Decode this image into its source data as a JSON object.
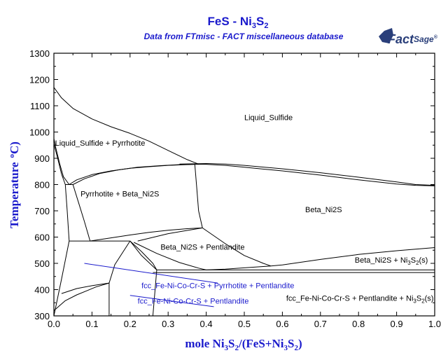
{
  "chart_data": {
    "type": "line",
    "title_parts": {
      "a": "FeS - Ni",
      "b": "3",
      "c": "S",
      "d": "2"
    },
    "subtitle": "Data from FTmisc - FACT miscellaneous database",
    "brand": {
      "name": "FactSage",
      "main": "Fact",
      "tail": "Sage",
      "mark": "®"
    },
    "xlabel_parts": {
      "a": "mole Ni",
      "b": "3",
      "c": "S",
      "d": "2",
      "e": "/(FeS+Ni",
      "f": "3",
      "g": "S",
      "h": "2",
      "i": ")"
    },
    "ylabel_parts": {
      "a": "Temperature",
      "b": "o",
      "c": "C)"
    },
    "xlim": [
      0,
      1
    ],
    "ylim": [
      300,
      1300
    ],
    "x_ticks": [
      "0.0",
      "0.1",
      "0.2",
      "0.3",
      "0.4",
      "0.5",
      "0.6",
      "0.7",
      "0.8",
      "0.9",
      "1.0"
    ],
    "y_ticks": [
      "300",
      "400",
      "500",
      "600",
      "700",
      "800",
      "900",
      "1000",
      "1100",
      "1200",
      "1300"
    ],
    "colors": {
      "title": "#1a1acc",
      "lines": "#000000",
      "tie_lines": "#1a1acc"
    },
    "grid": false,
    "boundaries": [
      {
        "x": [
          0.0,
          0.02,
          0.05,
          0.1,
          0.15,
          0.2,
          0.25,
          0.3,
          0.35,
          0.38
        ],
        "y": [
          1170,
          1130,
          1090,
          1050,
          1020,
          995,
          965,
          930,
          895,
          878
        ]
      },
      {
        "x": [
          0.0,
          0.005,
          0.015,
          0.025,
          0.04
        ],
        "y": [
          975,
          940,
          880,
          830,
          800
        ]
      },
      {
        "x": [
          0.0,
          0.01,
          0.02,
          0.03
        ],
        "y": [
          955,
          900,
          840,
          800
        ]
      },
      {
        "x": [
          0.04,
          0.06,
          0.1,
          0.15,
          0.2,
          0.25,
          0.3,
          0.35,
          0.37
        ],
        "y": [
          800,
          818,
          838,
          852,
          862,
          868,
          873,
          876,
          877
        ]
      },
      {
        "x": [
          0.05,
          0.08,
          0.12,
          0.17,
          0.22,
          0.28,
          0.33,
          0.37,
          0.4,
          0.45,
          0.5,
          0.6,
          0.7,
          0.8,
          0.9,
          0.95,
          1.0
        ],
        "y": [
          800,
          822,
          842,
          856,
          866,
          872,
          876,
          877,
          877,
          873,
          866,
          852,
          836,
          818,
          802,
          797,
          795
        ]
      },
      {
        "x": [
          0.33,
          0.4,
          0.45,
          0.5,
          0.6,
          0.7,
          0.8,
          0.9,
          0.95,
          1.0
        ],
        "y": [
          878,
          880,
          878,
          873,
          860,
          845,
          828,
          810,
          800,
          797
        ]
      },
      {
        "x": [
          0.03,
          0.05
        ],
        "y": [
          800,
          800
        ]
      },
      {
        "x": [
          0.03,
          0.035,
          0.04
        ],
        "y": [
          800,
          700,
          585
        ]
      },
      {
        "x": [
          0.05,
          0.065,
          0.08,
          0.095
        ],
        "y": [
          800,
          730,
          660,
          585
        ]
      },
      {
        "x": [
          0.37,
          0.375,
          0.38,
          0.39
        ],
        "y": [
          877,
          790,
          700,
          635
        ]
      },
      {
        "x": [
          0.095,
          0.15,
          0.2,
          0.25,
          0.3,
          0.35,
          0.39
        ],
        "y": [
          585,
          597,
          608,
          618,
          626,
          632,
          635
        ]
      },
      {
        "x": [
          0.04,
          0.2
        ],
        "y": [
          585,
          585
        ]
      },
      {
        "x": [
          0.22,
          0.3,
          0.39
        ],
        "y": [
          585,
          613,
          635
        ]
      },
      {
        "x": [
          0.39,
          0.45,
          0.5,
          0.55,
          0.57
        ],
        "y": [
          635,
          575,
          530,
          500,
          490
        ]
      },
      {
        "x": [
          0.21,
          0.27,
          0.33,
          0.38,
          0.4
        ],
        "y": [
          580,
          538,
          503,
          482,
          475
        ]
      },
      {
        "x": [
          0.4,
          0.45,
          0.5,
          0.55,
          0.57,
          0.6,
          0.7,
          0.8,
          0.9,
          1.0
        ],
        "y": [
          475,
          478,
          483,
          488,
          490,
          494,
          515,
          534,
          548,
          560
        ]
      },
      {
        "x": [
          0.2,
          0.23,
          0.26,
          0.27
        ],
        "y": [
          585,
          545,
          500,
          475
        ]
      },
      {
        "x": [
          0.27,
          1.0
        ],
        "y": [
          475,
          475
        ]
      },
      {
        "x": [
          0.26,
          1.0
        ],
        "y": [
          465,
          465
        ]
      },
      {
        "x": [
          0.04,
          0.02,
          0.0
        ],
        "y": [
          585,
          440,
          300
        ]
      },
      {
        "x": [
          0.0,
          0.03,
          0.06,
          0.09,
          0.11,
          0.145
        ],
        "y": [
          320,
          358,
          380,
          398,
          410,
          425
        ]
      },
      {
        "x": [
          0.02,
          0.06,
          0.1,
          0.145
        ],
        "y": [
          385,
          404,
          415,
          425
        ]
      },
      {
        "x": [
          0.145,
          0.16,
          0.2
        ],
        "y": [
          425,
          495,
          585
        ]
      },
      {
        "x": [
          0.2,
          0.23,
          0.27
        ],
        "y": [
          585,
          530,
          475
        ]
      },
      {
        "x": [
          0.145,
          0.145
        ],
        "y": [
          425,
          300
        ]
      },
      {
        "x": [
          0.26,
          0.27
        ],
        "y": [
          300,
          475
        ]
      }
    ],
    "tie_lines": [
      {
        "x": [
          0.08,
          0.43
        ],
        "y": [
          500,
          425
        ]
      },
      {
        "x": [
          0.2,
          0.42
        ],
        "y": [
          378,
          335
        ]
      }
    ],
    "labels": [
      {
        "text": "Liquid_Sulfide",
        "x": 0.5,
        "y": 1045,
        "kind": "phase"
      },
      {
        "text": "Liquid_Sulfide + Pyrrhotite",
        "x": 0.003,
        "y": 948,
        "kind": "phase"
      },
      {
        "text": "Pyrrhotite + Beta_Ni2S",
        "x": 0.07,
        "y": 755,
        "kind": "phase"
      },
      {
        "text": "Beta_Ni2S",
        "x": 0.66,
        "y": 695,
        "kind": "phase"
      },
      {
        "text": "Beta_Ni2S + Pentlandite",
        "x": 0.28,
        "y": 552,
        "kind": "phase"
      },
      {
        "parts": {
          "a": "Beta_Ni2S + Ni",
          "b": "3",
          "c": "S",
          "d": "2",
          "e": "(s)"
        },
        "x": 0.79,
        "y": 503,
        "kind": "phase"
      },
      {
        "text": "fcc_Fe-Ni-Co-Cr-S + Pyrrhotite + Pentlandite",
        "x": 0.23,
        "y": 405,
        "kind": "tie"
      },
      {
        "text": "fcc_Fe-Ni-Co-Cr-S + Pentlandite",
        "x": 0.22,
        "y": 347,
        "kind": "tie"
      },
      {
        "parts": {
          "a": "fcc_Fe-Ni-Co-Cr-S + Pentlandite + Ni",
          "b": "3",
          "c": "S",
          "d": "2",
          "e": "(s)"
        },
        "x": 0.61,
        "y": 357,
        "kind": "phase"
      }
    ]
  }
}
